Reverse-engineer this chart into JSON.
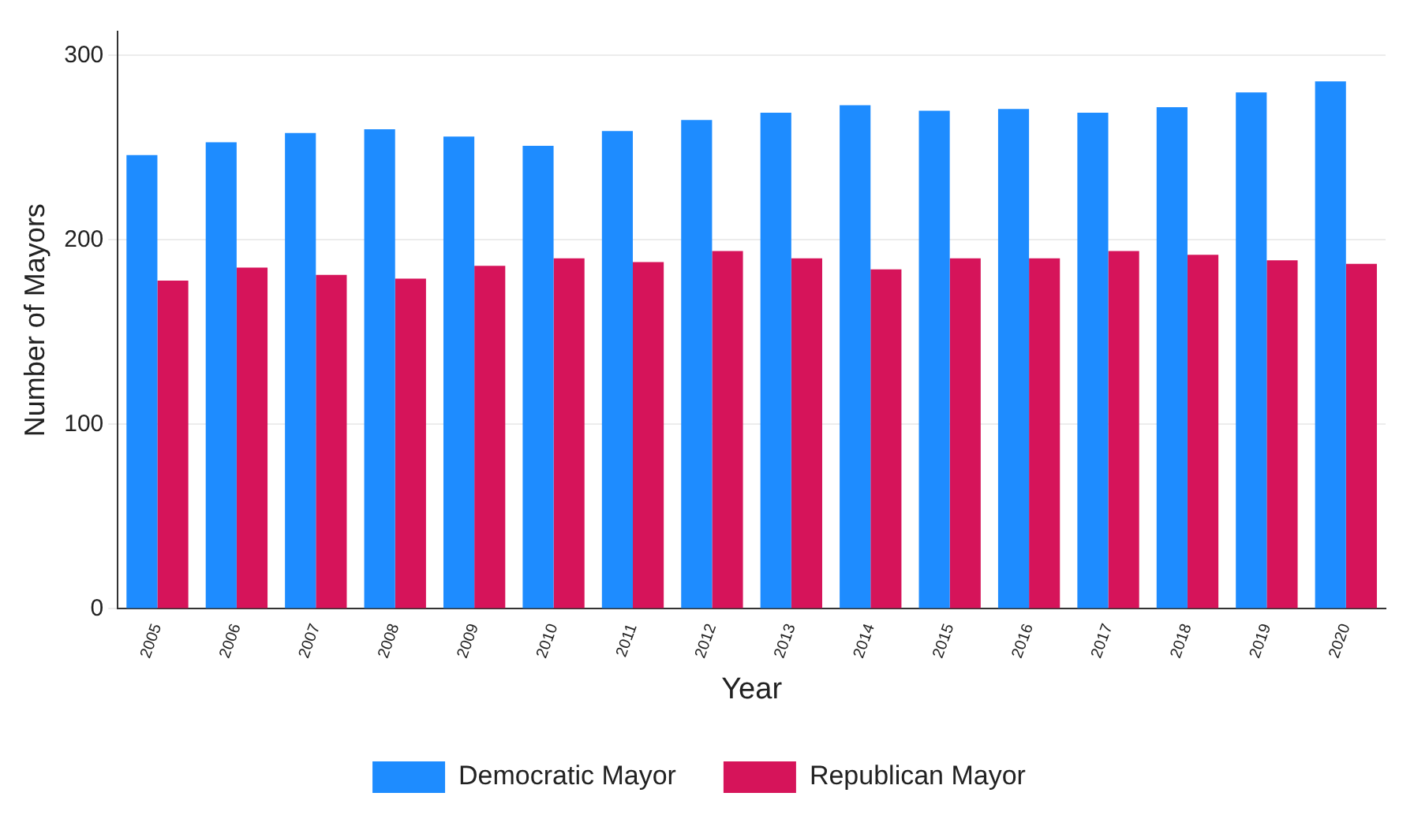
{
  "chart_data": {
    "type": "bar",
    "xlabel": "Year",
    "ylabel": "Number of Mayors",
    "categories": [
      "2005",
      "2006",
      "2007",
      "2008",
      "2009",
      "2010",
      "2011",
      "2012",
      "2013",
      "2014",
      "2015",
      "2016",
      "2017",
      "2018",
      "2019",
      "2020"
    ],
    "series": [
      {
        "name": "Democratic Mayor",
        "color": "#1e8cff",
        "values": [
          246,
          253,
          258,
          260,
          256,
          251,
          259,
          265,
          269,
          273,
          270,
          271,
          269,
          272,
          280,
          286
        ]
      },
      {
        "name": "Republican Mayor",
        "color": "#d6145a",
        "values": [
          178,
          185,
          181,
          179,
          186,
          190,
          188,
          194,
          190,
          184,
          190,
          190,
          194,
          192,
          189,
          187
        ]
      }
    ],
    "ylim": [
      0,
      313
    ],
    "yticks": [
      0,
      100,
      200,
      300
    ],
    "grid": "y",
    "legend": "bottom"
  }
}
